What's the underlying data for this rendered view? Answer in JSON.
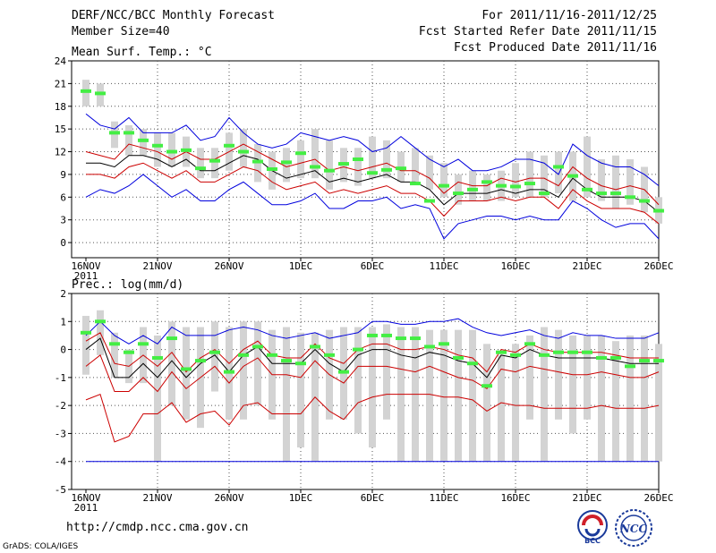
{
  "header": {
    "title": "DERF/NCC/BCC Monthly Forecast",
    "member_size": "Member Size=40",
    "period": "For 2011/11/16-2011/12/25",
    "fcst_started": "Fcst Started Refer Date 2011/11/15",
    "fcst_produced": "Fcst Produced Date 2011/11/16"
  },
  "footer": {
    "url": "http://cmdp.ncc.cma.gov.cn",
    "grads": "GrADS: COLA/IGES",
    "logo_bcc": "BCC",
    "logo_ncc": "NCC"
  },
  "colors": {
    "box": "#d3d3d3",
    "green": "#44ee44",
    "blue": "#0000dd",
    "red": "#cc0000",
    "black": "#000000",
    "grid": "#555555"
  },
  "chart_data": [
    {
      "type": "box-plume",
      "title": "Mean Surf. Temp.: °C",
      "ylim": [
        -2,
        24
      ],
      "yticks": [
        0,
        3,
        6,
        9,
        12,
        15,
        18,
        21,
        24
      ],
      "x_ticks": [
        "16NOV",
        "21NOV",
        "26NOV",
        "1DEC",
        "6DEC",
        "11DEC",
        "16DEC",
        "21DEC",
        "26DEC"
      ],
      "x_year": "2011",
      "days": 41,
      "box_low": [
        18.0,
        18.0,
        12.5,
        11.5,
        11.5,
        10.0,
        10.0,
        10.0,
        8.5,
        8.5,
        9.5,
        10.0,
        8.0,
        7.0,
        8.0,
        8.5,
        8.5,
        7.0,
        8.0,
        7.5,
        8.5,
        8.5,
        8.0,
        8.0,
        7.0,
        6.0,
        5.0,
        5.5,
        5.5,
        5.5,
        6.0,
        6.0,
        6.0,
        6.5,
        5.5,
        6.0,
        5.5,
        4.5,
        5.0,
        4.0,
        2.5
      ],
      "box_high": [
        21.5,
        21.0,
        16.0,
        15.5,
        15.0,
        14.5,
        14.5,
        14.0,
        12.5,
        12.5,
        14.5,
        15.0,
        13.0,
        12.0,
        12.5,
        13.5,
        15.0,
        13.5,
        12.5,
        12.5,
        14.0,
        13.5,
        12.0,
        12.5,
        11.5,
        10.5,
        9.0,
        9.5,
        9.0,
        9.5,
        10.5,
        12.0,
        11.5,
        12.0,
        12.0,
        14.0,
        11.0,
        11.5,
        11.0,
        10.0,
        6.0
      ],
      "ens_mean_green": [
        20.0,
        19.7,
        14.5,
        14.5,
        13.5,
        12.8,
        12.0,
        12.2,
        9.8,
        10.8,
        12.8,
        12.0,
        10.7,
        9.7,
        10.6,
        11.8,
        10.0,
        9.5,
        10.4,
        11.0,
        9.2,
        9.6,
        9.8,
        7.8,
        5.5,
        7.5,
        6.5,
        7.0,
        8.0,
        7.5,
        7.4,
        7.8,
        6.5,
        10.0,
        8.8,
        7.0,
        6.5,
        6.5,
        6.0,
        5.5,
        4.2
      ],
      "mean": [
        10.5,
        10.5,
        10.0,
        11.5,
        11.5,
        11.0,
        10.0,
        11.0,
        9.5,
        9.5,
        10.5,
        11.5,
        11.0,
        9.5,
        8.5,
        9.0,
        9.5,
        8.0,
        8.5,
        8.0,
        8.5,
        9.0,
        8.0,
        8.0,
        7.0,
        5.0,
        6.5,
        6.5,
        6.5,
        7.0,
        6.5,
        7.0,
        7.0,
        6.0,
        8.5,
        7.0,
        6.0,
        6.0,
        6.0,
        5.5,
        4.0
      ],
      "upper_red": [
        12.0,
        11.5,
        11.0,
        13.0,
        12.5,
        12.0,
        11.0,
        12.0,
        11.0,
        11.0,
        12.0,
        13.0,
        12.0,
        11.0,
        10.0,
        10.5,
        11.0,
        9.5,
        10.0,
        9.5,
        10.0,
        10.5,
        9.5,
        9.5,
        8.5,
        6.5,
        8.0,
        7.5,
        7.5,
        8.5,
        8.0,
        8.5,
        8.5,
        7.5,
        10.0,
        8.5,
        7.5,
        7.0,
        7.5,
        7.0,
        5.0
      ],
      "lower_red": [
        9.0,
        9.0,
        8.5,
        10.0,
        10.5,
        9.5,
        8.5,
        9.5,
        8.0,
        8.0,
        9.0,
        10.0,
        9.5,
        8.0,
        7.0,
        7.5,
        8.0,
        6.5,
        7.0,
        6.5,
        7.0,
        7.5,
        6.5,
        6.5,
        5.5,
        3.5,
        5.5,
        5.5,
        5.5,
        6.0,
        5.5,
        6.0,
        6.0,
        4.5,
        7.0,
        5.5,
        4.5,
        4.5,
        4.5,
        4.0,
        2.5
      ],
      "upper_blue": [
        17.0,
        15.5,
        15.0,
        16.5,
        14.5,
        14.5,
        14.5,
        15.5,
        13.5,
        14.0,
        16.5,
        14.5,
        13.0,
        12.5,
        13.0,
        14.5,
        14.0,
        13.5,
        14.0,
        13.5,
        12.0,
        12.5,
        14.0,
        12.5,
        11.0,
        10.0,
        11.0,
        9.5,
        9.5,
        10.0,
        11.0,
        11.0,
        10.5,
        9.0,
        13.0,
        11.5,
        10.5,
        10.0,
        10.0,
        9.0,
        7.5
      ],
      "lower_blue": [
        6.0,
        7.0,
        6.5,
        7.5,
        9.0,
        7.5,
        6.0,
        7.0,
        5.5,
        5.5,
        7.0,
        8.0,
        6.5,
        5.0,
        5.0,
        5.5,
        6.5,
        4.5,
        4.5,
        5.5,
        5.5,
        6.0,
        4.5,
        5.0,
        4.5,
        0.5,
        2.5,
        3.0,
        3.5,
        3.5,
        3.0,
        3.5,
        3.0,
        3.0,
        5.5,
        4.5,
        3.0,
        2.0,
        2.5,
        2.5,
        0.5
      ]
    },
    {
      "type": "box-plume",
      "title": "Prec.: log(mm/d)",
      "ylim": [
        -5,
        2
      ],
      "yticks": [
        -5,
        -4,
        -3,
        -2,
        -1,
        0,
        1,
        2
      ],
      "x_ticks": [
        "16NOV",
        "21NOV",
        "26NOV",
        "1DEC",
        "6DEC",
        "11DEC",
        "16DEC",
        "21DEC",
        "26DEC"
      ],
      "x_year": "2011",
      "days": 41,
      "box_low": [
        -0.9,
        -0.2,
        -1.0,
        -1.2,
        -1.2,
        -4.0,
        -2.0,
        -2.5,
        -2.8,
        -1.5,
        -2.5,
        -2.5,
        -2.0,
        -2.5,
        -4.0,
        -3.5,
        -4.0,
        -2.5,
        -2.5,
        -3.0,
        -3.5,
        -2.5,
        -4.0,
        -4.0,
        -4.0,
        -4.0,
        -4.0,
        -4.0,
        -4.0,
        -4.0,
        -4.0,
        -2.5,
        -4.0,
        -2.5,
        -3.0,
        -2.5,
        -4.0,
        -4.0,
        -4.0,
        -4.0,
        -4.0
      ],
      "box_high": [
        1.2,
        1.4,
        0.6,
        0.0,
        0.8,
        0.5,
        1.0,
        0.8,
        0.8,
        1.0,
        0.8,
        1.0,
        1.0,
        0.7,
        0.8,
        0.6,
        0.6,
        0.7,
        0.8,
        0.8,
        0.8,
        0.9,
        0.8,
        0.8,
        0.7,
        0.7,
        0.7,
        0.7,
        0.2,
        -0.2,
        0.2,
        0.5,
        0.8,
        0.7,
        0.5,
        0.5,
        0.5,
        0.3,
        0.5,
        0.5,
        0.2
      ],
      "ens_mean_green": [
        0.6,
        1.0,
        0.2,
        -0.1,
        0.2,
        -0.3,
        0.4,
        -0.7,
        -0.4,
        -0.1,
        -0.8,
        -0.2,
        0.1,
        -0.2,
        -0.4,
        -0.5,
        0.1,
        -0.2,
        -0.8,
        0.0,
        0.5,
        0.5,
        0.4,
        0.4,
        0.1,
        0.2,
        -0.3,
        -0.5,
        -1.3,
        -0.1,
        -0.2,
        0.2,
        -0.2,
        -0.1,
        -0.1,
        -0.1,
        -0.3,
        -0.3,
        -0.6,
        -0.4,
        -0.4
      ],
      "mean": [
        0.0,
        0.4,
        -1.0,
        -1.0,
        -0.5,
        -1.0,
        -0.4,
        -1.0,
        -0.5,
        -0.2,
        -0.8,
        -0.2,
        0.1,
        -0.5,
        -0.5,
        -0.5,
        0.0,
        -0.5,
        -0.8,
        -0.2,
        0.0,
        0.0,
        -0.2,
        -0.3,
        -0.1,
        -0.2,
        -0.4,
        -0.5,
        -1.0,
        -0.2,
        -0.3,
        0.0,
        -0.2,
        -0.3,
        -0.3,
        -0.3,
        -0.3,
        -0.4,
        -0.5,
        -0.5,
        -0.5
      ],
      "upper_red": [
        0.3,
        0.6,
        -0.5,
        -0.6,
        -0.2,
        -0.6,
        -0.1,
        -0.8,
        -0.3,
        0.0,
        -0.5,
        0.0,
        0.3,
        -0.2,
        -0.3,
        -0.3,
        0.2,
        -0.3,
        -0.5,
        0.0,
        0.2,
        0.2,
        0.0,
        0.0,
        0.1,
        0.0,
        -0.2,
        -0.3,
        -0.8,
        0.0,
        -0.1,
        0.2,
        0.0,
        -0.1,
        -0.1,
        -0.1,
        -0.1,
        -0.2,
        -0.3,
        -0.3,
        -0.3
      ],
      "lower_red": [
        -0.6,
        -0.2,
        -1.5,
        -1.5,
        -1.0,
        -1.5,
        -0.8,
        -1.4,
        -1.0,
        -0.6,
        -1.2,
        -0.6,
        -0.3,
        -0.9,
        -0.9,
        -1.0,
        -0.4,
        -0.9,
        -1.2,
        -0.6,
        -0.6,
        -0.6,
        -0.7,
        -0.8,
        -0.6,
        -0.8,
        -1.0,
        -1.1,
        -1.4,
        -0.7,
        -0.8,
        -0.6,
        -0.7,
        -0.8,
        -0.9,
        -0.9,
        -0.8,
        -0.9,
        -1.0,
        -1.0,
        -0.8
      ],
      "upper_blue": [
        0.5,
        1.0,
        0.5,
        0.2,
        0.5,
        0.2,
        0.8,
        0.5,
        0.5,
        0.5,
        0.7,
        0.8,
        0.7,
        0.5,
        0.4,
        0.5,
        0.6,
        0.4,
        0.5,
        0.6,
        1.0,
        1.0,
        0.9,
        0.9,
        1.0,
        1.0,
        1.1,
        0.8,
        0.6,
        0.5,
        0.6,
        0.7,
        0.5,
        0.4,
        0.6,
        0.5,
        0.5,
        0.4,
        0.4,
        0.4,
        0.6
      ],
      "lower_blue": [
        -4.0,
        -4.0,
        -4.0,
        -4.0,
        -4.0,
        -4.0,
        -4.0,
        -4.0,
        -4.0,
        -4.0,
        -4.0,
        -4.0,
        -4.0,
        -4.0,
        -4.0,
        -4.0,
        -4.0,
        -4.0,
        -4.0,
        -4.0,
        -4.0,
        -4.0,
        -4.0,
        -4.0,
        -4.0,
        -4.0,
        -4.0,
        -4.0,
        -4.0,
        -4.0,
        -4.0,
        -4.0,
        -4.0,
        -4.0,
        -4.0,
        -4.0,
        -4.0,
        -4.0,
        -4.0,
        -4.0,
        -4.0
      ],
      "lowest_red": [
        -1.8,
        -1.6,
        -3.3,
        -3.1,
        -2.3,
        -2.3,
        -1.9,
        -2.6,
        -2.3,
        -2.2,
        -2.7,
        -2.0,
        -1.9,
        -2.3,
        -2.3,
        -2.3,
        -1.7,
        -2.2,
        -2.5,
        -1.9,
        -1.7,
        -1.6,
        -1.6,
        -1.6,
        -1.6,
        -1.7,
        -1.7,
        -1.8,
        -2.2,
        -1.9,
        -2.0,
        -2.0,
        -2.1,
        -2.1,
        -2.1,
        -2.1,
        -2.0,
        -2.1,
        -2.1,
        -2.1,
        -2.0
      ]
    }
  ]
}
